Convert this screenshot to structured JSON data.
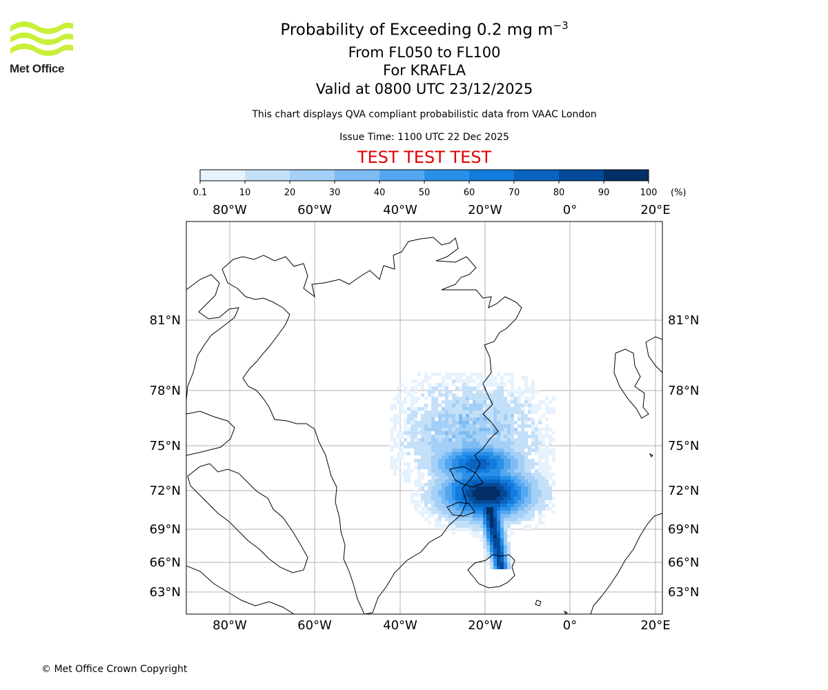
{
  "logo": {
    "text": "Met Office",
    "colors": {
      "waves": "#c8f03a",
      "text": "#222222"
    }
  },
  "title": {
    "line1_prefix": "Probability of Exceeding 0.2 mg m",
    "line1_exp": "−3",
    "line2": "From FL050 to FL100",
    "line3": "For KRAFLA",
    "line4": "Valid at 0800 UTC 23/12/2025"
  },
  "subtitle": "This chart displays QVA compliant probabilistic data from VAAC London",
  "issue_time": "Issue Time: 1100 UTC 22 Dec 2025",
  "test_banner": "TEST TEST TEST",
  "colorbar": {
    "ticks": [
      "0.1",
      "10",
      "20",
      "30",
      "40",
      "50",
      "60",
      "70",
      "80",
      "90",
      "100"
    ],
    "unit": "(%)",
    "colors": [
      "#e6f2fd",
      "#c4e0f9",
      "#a4cff6",
      "#7dbcf3",
      "#52a7f0",
      "#2a8fe8",
      "#127bdb",
      "#0a63bf",
      "#054a98",
      "#022f65"
    ]
  },
  "map": {
    "lon_labels": [
      "80°W",
      "60°W",
      "40°W",
      "20°W",
      "0°",
      "20°E"
    ],
    "lat_labels": [
      "81°N",
      "78°N",
      "75°N",
      "72°N",
      "69°N",
      "66°N",
      "63°N"
    ]
  },
  "copyright": "© Met Office Crown Copyright"
}
